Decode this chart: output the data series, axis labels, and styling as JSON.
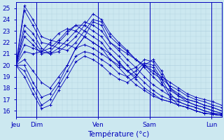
{
  "xlabel": "Température (°c)",
  "background_color": "#cce8f0",
  "line_color": "#0000bb",
  "grid_color": "#aaccdd",
  "ylim": [
    15.5,
    25.5
  ],
  "xlim": [
    0,
    120
  ],
  "day_labels": [
    "Jeu",
    "Dim",
    "Ven",
    "Sam",
    "Lun"
  ],
  "day_positions": [
    0,
    12,
    48,
    78,
    114
  ],
  "ytick_values": [
    16,
    17,
    18,
    19,
    20,
    21,
    22,
    23,
    24,
    25
  ],
  "series": [
    [
      20.0,
      25.2,
      24.0,
      22.5,
      22.2,
      22.0,
      21.8,
      21.5,
      22.5,
      23.8,
      23.5,
      22.0,
      21.5,
      21.0,
      20.5,
      20.0,
      19.5,
      19.0,
      18.5,
      18.0,
      17.5,
      17.2,
      17.0,
      16.8,
      16.5
    ],
    [
      20.0,
      24.8,
      23.5,
      22.0,
      21.8,
      21.5,
      21.3,
      22.0,
      23.0,
      24.0,
      23.8,
      22.5,
      21.8,
      21.2,
      20.5,
      20.0,
      19.3,
      18.8,
      18.2,
      17.8,
      17.3,
      17.0,
      16.8,
      16.5,
      16.3
    ],
    [
      20.0,
      23.5,
      22.8,
      21.5,
      21.0,
      21.2,
      21.8,
      22.5,
      23.5,
      24.5,
      24.0,
      22.8,
      22.0,
      21.3,
      20.5,
      19.8,
      19.0,
      18.3,
      17.8,
      17.3,
      17.0,
      16.8,
      16.5,
      16.3,
      16.0
    ],
    [
      20.0,
      23.0,
      22.2,
      21.2,
      21.0,
      21.5,
      22.2,
      23.0,
      23.8,
      23.5,
      23.0,
      22.0,
      21.3,
      20.5,
      19.8,
      19.0,
      18.3,
      17.8,
      17.3,
      17.0,
      16.8,
      16.5,
      16.3,
      16.0,
      15.8
    ],
    [
      20.0,
      22.5,
      21.8,
      21.0,
      21.2,
      22.0,
      22.8,
      23.5,
      23.5,
      23.0,
      22.5,
      21.5,
      20.8,
      20.0,
      19.2,
      18.5,
      17.8,
      17.3,
      17.0,
      16.8,
      16.5,
      16.3,
      16.0,
      15.8,
      15.7
    ],
    [
      20.0,
      21.8,
      21.5,
      21.2,
      21.5,
      22.2,
      23.0,
      23.5,
      23.0,
      22.5,
      22.0,
      21.0,
      20.2,
      19.5,
      18.8,
      18.0,
      17.5,
      17.0,
      16.8,
      16.5,
      16.3,
      16.0,
      15.8,
      15.7,
      15.6
    ],
    [
      20.0,
      21.2,
      21.0,
      21.2,
      22.0,
      22.8,
      23.2,
      23.0,
      22.5,
      22.0,
      21.5,
      20.5,
      19.8,
      19.0,
      18.3,
      17.8,
      17.3,
      17.0,
      16.8,
      16.5,
      16.3,
      16.0,
      15.8,
      15.7,
      15.6
    ],
    [
      20.0,
      20.5,
      19.5,
      18.5,
      18.0,
      19.0,
      20.0,
      21.5,
      22.5,
      22.0,
      21.5,
      21.0,
      20.3,
      19.5,
      19.0,
      20.0,
      20.5,
      19.5,
      18.0,
      17.5,
      17.0,
      16.8,
      16.5,
      16.3,
      16.0
    ],
    [
      20.0,
      20.0,
      18.5,
      17.2,
      17.5,
      18.5,
      20.0,
      21.5,
      21.8,
      21.5,
      21.0,
      20.5,
      20.0,
      19.5,
      19.8,
      20.5,
      20.3,
      19.2,
      18.0,
      17.3,
      16.8,
      16.5,
      16.3,
      16.0,
      15.8
    ],
    [
      20.0,
      19.5,
      18.0,
      16.5,
      17.0,
      18.2,
      19.5,
      20.8,
      21.2,
      21.0,
      20.5,
      20.0,
      19.3,
      19.0,
      19.5,
      20.2,
      20.0,
      18.8,
      17.5,
      16.8,
      16.5,
      16.3,
      16.0,
      15.8,
      15.7
    ],
    [
      20.0,
      19.0,
      17.5,
      16.2,
      16.5,
      17.8,
      19.0,
      20.3,
      20.8,
      20.5,
      20.0,
      19.3,
      18.8,
      18.5,
      19.0,
      20.0,
      19.8,
      18.5,
      17.2,
      16.5,
      16.3,
      16.0,
      15.8,
      15.7,
      15.6
    ]
  ]
}
